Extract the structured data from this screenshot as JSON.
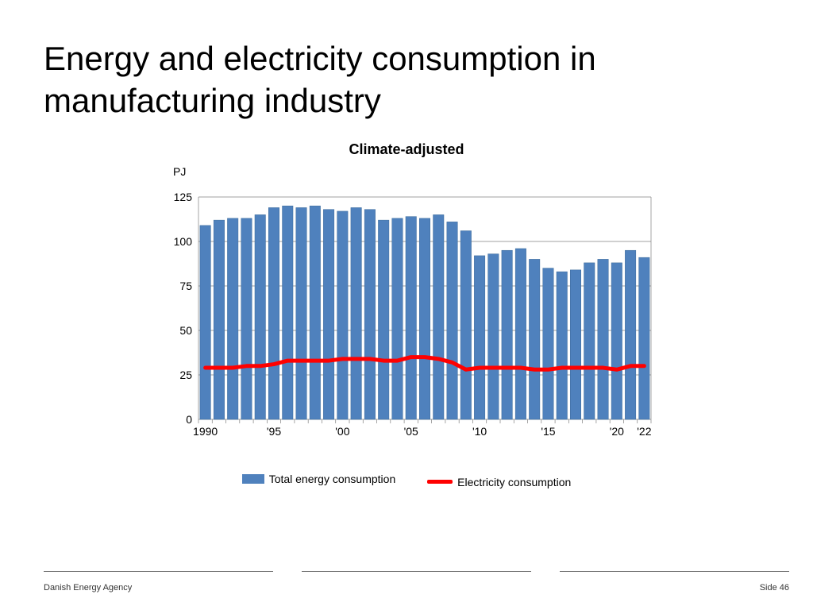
{
  "title": "Energy and electricity consumption in manufacturing industry",
  "subtitle": "Climate-adjusted",
  "y_axis_label": "PJ",
  "footer": {
    "left": "Danish Energy Agency",
    "right": "Side 46"
  },
  "legend": {
    "bar": "Total energy consumption",
    "line": "Electricity consumption"
  },
  "chart": {
    "type": "bar+line",
    "background_color": "#ffffff",
    "plot_border_color": "#808080",
    "grid_color": "#808080",
    "bar_color": "#4f81bd",
    "bar_border_color": "#3b6a9a",
    "line_color": "#ff0000",
    "line_width": 5,
    "ylim": [
      0,
      125
    ],
    "ytick_step": 25,
    "yticks": [
      0,
      25,
      50,
      75,
      100,
      125
    ],
    "years": [
      1990,
      1991,
      1992,
      1993,
      1994,
      1995,
      1996,
      1997,
      1998,
      1999,
      2000,
      2001,
      2002,
      2003,
      2004,
      2005,
      2006,
      2007,
      2008,
      2009,
      2010,
      2011,
      2012,
      2013,
      2014,
      2015,
      2016,
      2017,
      2018,
      2019,
      2020,
      2021,
      2022
    ],
    "xticks": [
      {
        "year": 1990,
        "label": "1990"
      },
      {
        "year": 1995,
        "label": "'95"
      },
      {
        "year": 2000,
        "label": "'00"
      },
      {
        "year": 2005,
        "label": "'05"
      },
      {
        "year": 2010,
        "label": "'10"
      },
      {
        "year": 2015,
        "label": "'15"
      },
      {
        "year": 2020,
        "label": "'20"
      },
      {
        "year": 2022,
        "label": "'22"
      }
    ],
    "bars": [
      109,
      112,
      113,
      113,
      115,
      119,
      120,
      119,
      120,
      118,
      117,
      119,
      118,
      112,
      113,
      114,
      113,
      115,
      111,
      106,
      92,
      93,
      95,
      96,
      90,
      85,
      83,
      84,
      88,
      90,
      88,
      95,
      91
    ],
    "line_values": [
      29,
      29,
      29,
      30,
      30,
      31,
      33,
      33,
      33,
      33,
      34,
      34,
      34,
      33,
      33,
      35,
      35,
      34,
      32,
      28,
      29,
      29,
      29,
      29,
      28,
      28,
      29,
      29,
      29,
      29,
      28,
      30,
      30
    ],
    "bar_gap_ratio": 0.22,
    "font_family": "Verdana",
    "tick_fontsize": 14,
    "title_fontsize": 42,
    "subtitle_fontsize": 18
  }
}
